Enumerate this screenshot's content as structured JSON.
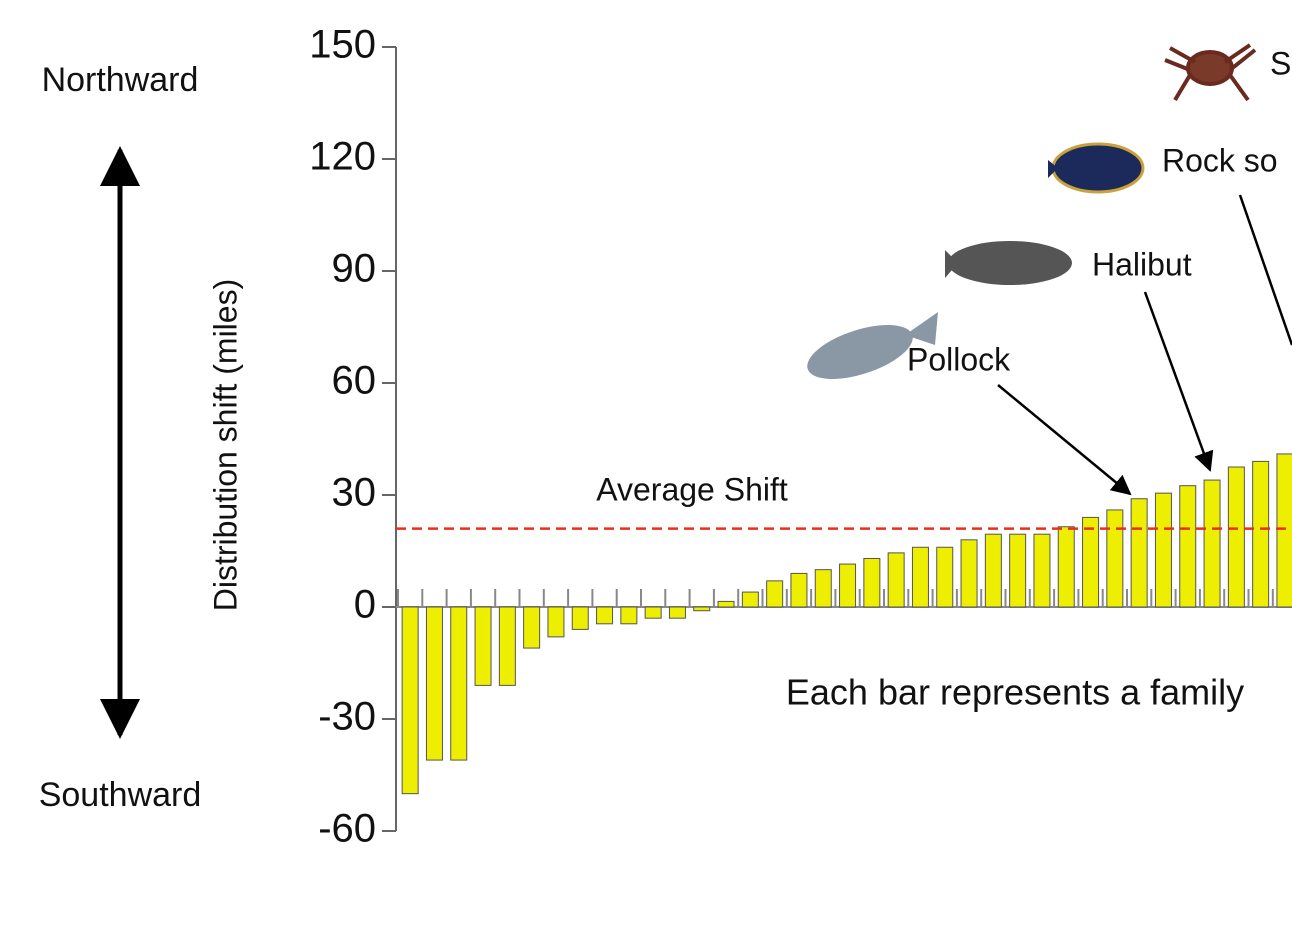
{
  "chart_data": {
    "type": "bar",
    "y_label": "Distribution shift (miles)",
    "north_label": "Northward",
    "south_label": "Southward",
    "note": "Each bar represents a family",
    "average_label": "Average Shift",
    "average": 21,
    "annotations": [
      "Pollock",
      "Halibut",
      "Rock so",
      "S"
    ],
    "values": [
      -50,
      -41,
      -41,
      -21,
      -21,
      -11,
      -8,
      -6,
      -4.5,
      -4.5,
      -3,
      -3,
      -1,
      1.5,
      4,
      7,
      9,
      10,
      11.5,
      13,
      14.5,
      16,
      16,
      18,
      19.5,
      19.5,
      19.5,
      21.5,
      24,
      26,
      29,
      30.5,
      32.5,
      34,
      37.5,
      39,
      41
    ],
    "color": "#eeee00",
    "average_color": "#e8311b",
    "ylim": [
      -60,
      150
    ],
    "yticks": [
      -60,
      -30,
      0,
      30,
      60,
      90,
      120,
      150
    ]
  }
}
